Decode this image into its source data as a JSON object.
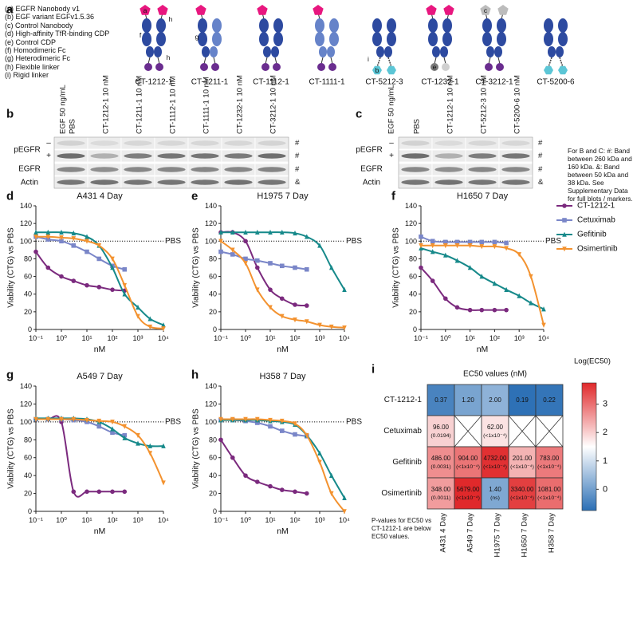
{
  "panel_labels": [
    "a",
    "b",
    "c",
    "d",
    "e",
    "f",
    "g",
    "h",
    "i"
  ],
  "panel_a": {
    "legend": [
      "(a) EGFR Nanobody v1",
      "(b) EGF variant EGFv1.5.36",
      "(c) Control Nanobody",
      "(d) High-affinity TfR-binding CDP",
      "(e) Control CDP",
      "(f) Homodimeric Fc",
      "(g) Heterodimeric Fc",
      "(h) Flexible linker",
      "(i) Rigid linker"
    ],
    "constructs": [
      "CT-1212-1",
      "CT-1211-1",
      "CT-1112-1",
      "CT-1111-1",
      "CT-5212-3",
      "CT-1232-1",
      "CT-3212-1",
      "CT-5200-6"
    ],
    "diagram_letters": [
      "a",
      "h",
      "f",
      "h",
      "g",
      "i",
      "b",
      "e",
      "c"
    ]
  },
  "blots": [
    {
      "treatment": "EGF 50 ng/mL",
      "lanes": [
        "PBS",
        "CT-1212-1 10 nM",
        "CT-1211-1 10 nM",
        "CT-1112-1 10 nM",
        "CT-1111-1 10 nM",
        "CT-1232-1 10 nM",
        "CT-3212-1 10 nM"
      ],
      "rows": [
        "pEGFR",
        "EGFR",
        "Actin"
      ],
      "egf_states": [
        "–",
        "+"
      ],
      "markers": [
        "#",
        "#",
        "#",
        "&"
      ]
    },
    {
      "treatment": "EGF 50 ng/mL",
      "lanes": [
        "PBS",
        "CT-1212-1 10 nM",
        "CT-5212-3 10 nM",
        "CT-5200-6 10 nM"
      ],
      "rows": [
        "pEGFR",
        "EGFR",
        "Actin"
      ],
      "egf_states": [
        "–",
        "+"
      ],
      "markers": [
        "#",
        "#",
        "#",
        "&"
      ]
    }
  ],
  "blot_note": "For B and C: #: Band between 260 kDa and 160 kDa. &: Band between 50 kDa and 38 kDa. See Supplementary Data for full blots / markers.",
  "chart_data": [
    {
      "type": "line",
      "title": "A431 4 Day",
      "xlabel": "nM",
      "ylabel": "Viability (CTG) vs PBS",
      "log_x": true,
      "xlim": [
        0.1,
        10000
      ],
      "ylim": [
        0,
        140
      ],
      "xticks": [
        {
          "value": 0.1,
          "label": "10⁻¹"
        },
        {
          "value": 1,
          "label": "10⁰"
        },
        {
          "value": 10,
          "label": "10¹"
        },
        {
          "value": 100,
          "label": "10²"
        },
        {
          "value": 1000,
          "label": "10³"
        },
        {
          "value": 10000,
          "label": "10⁴"
        }
      ],
      "yticks": [
        0,
        20,
        40,
        60,
        80,
        100,
        120,
        140
      ],
      "reference": {
        "value": 100,
        "label": "PBS"
      },
      "series": [
        {
          "color": "#7b2a7e",
          "marker": "circle",
          "x": [
            0.1,
            0.3,
            1,
            3,
            10,
            30,
            100,
            300
          ],
          "values": [
            88,
            70,
            60,
            55,
            50,
            48,
            45,
            44
          ]
        },
        {
          "color": "#7a86c8",
          "marker": "square",
          "x": [
            0.1,
            0.3,
            1,
            3,
            10,
            30,
            100,
            300
          ],
          "values": [
            105,
            102,
            100,
            95,
            88,
            80,
            72,
            68
          ]
        },
        {
          "color": "#16898a",
          "marker": "triangle",
          "x": [
            0.1,
            0.3,
            1,
            3,
            10,
            30,
            100,
            300,
            1000,
            3000,
            10000
          ],
          "values": [
            110,
            110,
            110,
            109,
            105,
            95,
            70,
            40,
            25,
            12,
            5
          ]
        },
        {
          "color": "#f3922f",
          "marker": "triangle-down",
          "x": [
            0.1,
            0.3,
            1,
            3,
            10,
            30,
            100,
            300,
            1000,
            3000,
            10000
          ],
          "values": [
            105,
            105,
            104,
            103,
            100,
            95,
            80,
            50,
            15,
            3,
            1
          ]
        }
      ]
    },
    {
      "type": "line",
      "title": "H1975 7 Day",
      "xlabel": "nM",
      "ylabel": "Viability (CTG) vs PBS",
      "log_x": true,
      "xlim": [
        0.1,
        10000
      ],
      "ylim": [
        0,
        140
      ],
      "xticks": [
        {
          "value": 0.1,
          "label": "10⁻¹"
        },
        {
          "value": 1,
          "label": "10⁰"
        },
        {
          "value": 10,
          "label": "10¹"
        },
        {
          "value": 100,
          "label": "10²"
        },
        {
          "value": 1000,
          "label": "10³"
        },
        {
          "value": 10000,
          "label": "10⁴"
        }
      ],
      "yticks": [
        0,
        20,
        40,
        60,
        80,
        100,
        120,
        140
      ],
      "reference": {
        "value": 100,
        "label": "PBS"
      },
      "series": [
        {
          "color": "#7b2a7e",
          "marker": "circle",
          "x": [
            0.1,
            0.3,
            1,
            3,
            10,
            30,
            100,
            300
          ],
          "values": [
            110,
            110,
            100,
            70,
            45,
            35,
            28,
            27
          ]
        },
        {
          "color": "#7a86c8",
          "marker": "square",
          "x": [
            0.1,
            0.3,
            1,
            3,
            10,
            30,
            100,
            300
          ],
          "values": [
            88,
            85,
            80,
            78,
            75,
            72,
            70,
            68
          ]
        },
        {
          "color": "#16898a",
          "marker": "triangle",
          "x": [
            0.1,
            0.3,
            1,
            3,
            10,
            30,
            100,
            300,
            1000,
            3000,
            10000
          ],
          "values": [
            110,
            110,
            110,
            110,
            110,
            110,
            109,
            105,
            95,
            70,
            45
          ]
        },
        {
          "color": "#f3922f",
          "marker": "triangle-down",
          "x": [
            0.1,
            0.3,
            1,
            3,
            10,
            30,
            100,
            300,
            1000,
            3000,
            10000
          ],
          "values": [
            100,
            90,
            75,
            45,
            25,
            15,
            11,
            9,
            5,
            3,
            2
          ]
        }
      ]
    },
    {
      "type": "line",
      "title": "H1650 7 Day",
      "xlabel": "nM",
      "ylabel": "Viability (CTG) vs PBS",
      "log_x": true,
      "xlim": [
        0.1,
        10000
      ],
      "ylim": [
        0,
        140
      ],
      "xticks": [
        {
          "value": 0.1,
          "label": "10⁻¹"
        },
        {
          "value": 1,
          "label": "10⁰"
        },
        {
          "value": 10,
          "label": "10¹"
        },
        {
          "value": 100,
          "label": "10²"
        },
        {
          "value": 1000,
          "label": "10³"
        },
        {
          "value": 10000,
          "label": "10⁴"
        }
      ],
      "yticks": [
        0,
        20,
        40,
        60,
        80,
        100,
        120,
        140
      ],
      "reference": {
        "value": 100,
        "label": "PBS"
      },
      "legend": "outside-right",
      "series": [
        {
          "name": "CT-1212-1",
          "color": "#7b2a7e",
          "marker": "circle",
          "x": [
            0.1,
            0.3,
            1,
            3,
            10,
            30,
            100,
            300
          ],
          "values": [
            70,
            55,
            35,
            25,
            22,
            22,
            22,
            22
          ]
        },
        {
          "name": "Cetuximab",
          "color": "#7a86c8",
          "marker": "square",
          "x": [
            0.1,
            0.3,
            1,
            3,
            10,
            30,
            100,
            300
          ],
          "values": [
            105,
            100,
            99,
            99,
            99,
            99,
            99,
            98
          ]
        },
        {
          "name": "Gefitinib",
          "color": "#16898a",
          "marker": "triangle",
          "x": [
            0.1,
            0.3,
            1,
            3,
            10,
            30,
            100,
            300,
            1000,
            3000,
            10000
          ],
          "values": [
            92,
            88,
            84,
            78,
            70,
            60,
            52,
            45,
            38,
            30,
            23
          ]
        },
        {
          "name": "Osimertinib",
          "color": "#f3922f",
          "marker": "triangle-down",
          "x": [
            0.1,
            0.3,
            1,
            3,
            10,
            30,
            100,
            300,
            1000,
            3000,
            10000
          ],
          "values": [
            95,
            95,
            95,
            95,
            95,
            94,
            94,
            92,
            85,
            60,
            5
          ]
        }
      ]
    },
    {
      "type": "line",
      "title": "A549 7 Day",
      "xlabel": "nM",
      "ylabel": "Viability (CTG) vs PBS",
      "log_x": true,
      "xlim": [
        0.1,
        10000
      ],
      "ylim": [
        0,
        140
      ],
      "xticks": [
        {
          "value": 0.1,
          "label": "10⁻¹"
        },
        {
          "value": 1,
          "label": "10⁰"
        },
        {
          "value": 10,
          "label": "10¹"
        },
        {
          "value": 100,
          "label": "10²"
        },
        {
          "value": 1000,
          "label": "10³"
        },
        {
          "value": 10000,
          "label": "10⁴"
        }
      ],
      "yticks": [
        0,
        20,
        40,
        60,
        80,
        100,
        120,
        140
      ],
      "reference": {
        "value": 100,
        "label": "PBS"
      },
      "series": [
        {
          "color": "#7b2a7e",
          "marker": "circle",
          "x": [
            0.1,
            0.3,
            1,
            3,
            10,
            30,
            100,
            300
          ],
          "values": [
            103,
            103,
            100,
            22,
            22,
            22,
            22,
            22
          ]
        },
        {
          "color": "#7a86c8",
          "marker": "square",
          "x": [
            0.1,
            0.3,
            1,
            3,
            10,
            30,
            100,
            300
          ],
          "values": [
            103,
            103,
            103,
            102,
            100,
            95,
            88,
            85
          ]
        },
        {
          "color": "#16898a",
          "marker": "triangle",
          "x": [
            0.1,
            0.3,
            1,
            3,
            10,
            30,
            100,
            300,
            1000,
            3000,
            10000
          ],
          "values": [
            104,
            104,
            104,
            104,
            103,
            100,
            92,
            82,
            76,
            73,
            73
          ]
        },
        {
          "color": "#f3922f",
          "marker": "triangle-down",
          "x": [
            0.1,
            0.3,
            1,
            3,
            10,
            30,
            100,
            300,
            1000,
            3000,
            10000
          ],
          "values": [
            103,
            103,
            103,
            103,
            102,
            101,
            100,
            95,
            85,
            65,
            32
          ]
        }
      ]
    },
    {
      "type": "line",
      "title": "H358 7 Day",
      "xlabel": "nM",
      "ylabel": "Viability (CTG) vs PBS",
      "log_x": true,
      "xlim": [
        0.1,
        10000
      ],
      "ylim": [
        0,
        140
      ],
      "xticks": [
        {
          "value": 0.1,
          "label": "10⁻¹"
        },
        {
          "value": 1,
          "label": "10⁰"
        },
        {
          "value": 10,
          "label": "10¹"
        },
        {
          "value": 100,
          "label": "10²"
        },
        {
          "value": 1000,
          "label": "10³"
        },
        {
          "value": 10000,
          "label": "10⁴"
        }
      ],
      "yticks": [
        0,
        20,
        40,
        60,
        80,
        100,
        120,
        140
      ],
      "reference": {
        "value": 100,
        "label": "PBS"
      },
      "series": [
        {
          "color": "#7b2a7e",
          "marker": "circle",
          "x": [
            0.1,
            0.3,
            1,
            3,
            10,
            30,
            100,
            300
          ],
          "values": [
            80,
            60,
            40,
            33,
            28,
            24,
            22,
            20
          ]
        },
        {
          "color": "#7a86c8",
          "marker": "square",
          "x": [
            0.1,
            0.3,
            1,
            3,
            10,
            30,
            100,
            300
          ],
          "values": [
            102,
            102,
            101,
            99,
            95,
            90,
            86,
            84
          ]
        },
        {
          "color": "#16898a",
          "marker": "triangle",
          "x": [
            0.1,
            0.3,
            1,
            3,
            10,
            30,
            100,
            300,
            1000,
            3000,
            10000
          ],
          "values": [
            102,
            102,
            102,
            102,
            101,
            100,
            97,
            85,
            65,
            40,
            15
          ]
        },
        {
          "color": "#f3922f",
          "marker": "triangle-down",
          "x": [
            0.1,
            0.3,
            1,
            3,
            10,
            30,
            100,
            300,
            1000,
            3000,
            10000
          ],
          "values": [
            103,
            103,
            103,
            103,
            102,
            101,
            98,
            85,
            55,
            20,
            0
          ]
        }
      ]
    }
  ],
  "heatmap": {
    "title": "EC50 values (nM)",
    "rows": [
      "CT-1212-1",
      "Cetuximab",
      "Gefitinib",
      "Osimertinib"
    ],
    "columns": [
      "A431 4 Day",
      "A549 7 Day",
      "H1975 7 Day",
      "H1650 7 Day",
      "H358 7 Day"
    ],
    "cells": [
      [
        {
          "ec50": "0.37"
        },
        {
          "ec50": "1.20"
        },
        {
          "ec50": "2.00"
        },
        {
          "ec50": "0.19"
        },
        {
          "ec50": "0.22"
        }
      ],
      [
        {
          "ec50": "96.00",
          "p": "(0.0194)"
        },
        null,
        {
          "ec50": "62.00",
          "p": "(<1x10⁻⁴)"
        },
        null,
        null
      ],
      [
        {
          "ec50": "486.00",
          "p": "(0.0031)"
        },
        {
          "ec50": "904.00",
          "p": "(<1x10⁻⁴)"
        },
        {
          "ec50": "4732.00",
          "p": "(<1x10⁻⁴)"
        },
        {
          "ec50": "201.00",
          "p": "(<1x10⁻⁴)"
        },
        {
          "ec50": "783.00",
          "p": "(<1x10⁻⁴)"
        }
      ],
      [
        {
          "ec50": "348.00",
          "p": "(0.0011)"
        },
        {
          "ec50": "5679.00",
          "p": "(<1x10⁻⁴)"
        },
        {
          "ec50": "1.40",
          "p": "(ns)"
        },
        {
          "ec50": "3340.00",
          "p": "(<1x10⁻⁴)"
        },
        {
          "ec50": "1081.00",
          "p": "(<1x10⁻⁴)"
        }
      ]
    ],
    "colorbar": {
      "label": "Log(EC50)",
      "lim": [
        -0.75,
        3.75
      ],
      "ticks": [
        0,
        1,
        2,
        3
      ]
    },
    "note": "P-values for EC50 vs CT-1212-1 are below EC50 values."
  }
}
